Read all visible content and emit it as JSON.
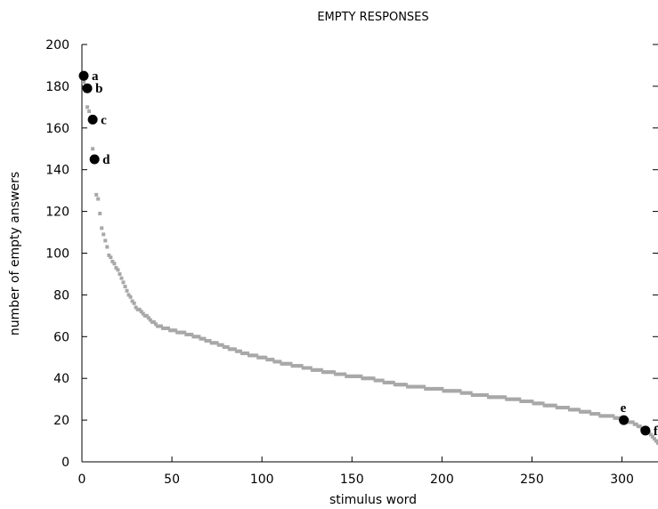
{
  "chart_data": {
    "type": "scatter",
    "title": "EMPTY RESPONSES",
    "xlabel": "stimulus word",
    "ylabel": "number of empty answers",
    "xlim": [
      0,
      320
    ],
    "ylim": [
      0,
      200
    ],
    "xticks": [
      0,
      50,
      100,
      150,
      200,
      250,
      300
    ],
    "yticks": [
      0,
      20,
      40,
      60,
      80,
      100,
      120,
      140,
      160,
      180,
      200
    ],
    "grid": false,
    "legend": "none",
    "colors": {
      "points": "#a8a8a8",
      "highlight": "#000000",
      "axis": "#000000"
    },
    "curve_knots": [
      [
        0,
        185
      ],
      [
        2,
        178
      ],
      [
        3,
        170
      ],
      [
        4,
        168
      ],
      [
        5,
        165
      ],
      [
        6,
        150
      ],
      [
        7,
        145
      ],
      [
        8,
        128
      ],
      [
        9,
        126
      ],
      [
        11,
        112
      ],
      [
        13,
        106
      ],
      [
        15,
        99
      ],
      [
        17,
        96
      ],
      [
        20,
        92
      ],
      [
        23,
        86
      ],
      [
        26,
        80
      ],
      [
        30,
        74
      ],
      [
        34,
        71
      ],
      [
        38,
        68
      ],
      [
        42,
        65
      ],
      [
        50,
        63
      ],
      [
        60,
        61
      ],
      [
        70,
        58
      ],
      [
        80,
        55
      ],
      [
        90,
        52
      ],
      [
        100,
        50
      ],
      [
        110,
        47.5
      ],
      [
        120,
        46
      ],
      [
        130,
        44
      ],
      [
        140,
        42.5
      ],
      [
        150,
        41
      ],
      [
        160,
        40
      ],
      [
        170,
        38
      ],
      [
        180,
        36.5
      ],
      [
        190,
        35.5
      ],
      [
        200,
        34.5
      ],
      [
        210,
        33.5
      ],
      [
        220,
        32
      ],
      [
        230,
        31
      ],
      [
        240,
        30
      ],
      [
        250,
        28.5
      ],
      [
        260,
        27
      ],
      [
        270,
        25.5
      ],
      [
        280,
        24
      ],
      [
        290,
        22
      ],
      [
        300,
        21
      ],
      [
        305,
        19
      ],
      [
        310,
        17
      ],
      [
        313,
        15
      ],
      [
        316,
        13
      ],
      [
        318,
        11
      ],
      [
        320,
        9
      ]
    ],
    "labeled_points": [
      {
        "label": "a",
        "x": 1,
        "y": 185
      },
      {
        "label": "b",
        "x": 3,
        "y": 179
      },
      {
        "label": "c",
        "x": 6,
        "y": 164
      },
      {
        "label": "d",
        "x": 7,
        "y": 145
      },
      {
        "label": "e",
        "x": 301,
        "y": 20
      },
      {
        "label": "f",
        "x": 313,
        "y": 15
      }
    ]
  }
}
